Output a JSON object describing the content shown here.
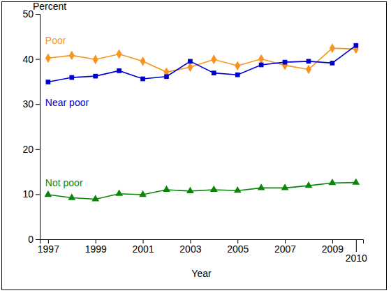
{
  "chart_data": {
    "type": "line",
    "y_label": "Percent",
    "x_label": "Year",
    "x": [
      1997,
      1998,
      1999,
      2000,
      2001,
      2002,
      2003,
      2004,
      2005,
      2006,
      2007,
      2008,
      2009,
      2010
    ],
    "series": [
      {
        "name": "Poor",
        "color": "#f7931e",
        "marker": "diamond",
        "values": [
          40.2,
          40.8,
          39.9,
          41.1,
          39.5,
          37.1,
          38.2,
          39.9,
          38.5,
          40.0,
          38.6,
          37.7,
          42.4,
          42.2
        ]
      },
      {
        "name": "Near poor",
        "color": "#0000cc",
        "marker": "square",
        "values": [
          34.9,
          35.9,
          36.2,
          37.4,
          35.6,
          36.1,
          39.5,
          36.9,
          36.5,
          38.7,
          39.3,
          39.5,
          39.1,
          43.0
        ]
      },
      {
        "name": "Not poor",
        "color": "#0a850a",
        "marker": "triangle",
        "values": [
          9.9,
          9.2,
          8.9,
          10.1,
          9.9,
          11.0,
          10.7,
          11.0,
          10.8,
          11.4,
          11.4,
          11.9,
          12.5,
          12.6
        ]
      }
    ],
    "xlim": [
      1996.65,
      2010.3
    ],
    "xticks": [
      1997,
      1999,
      2001,
      2003,
      2005,
      2007,
      2009,
      2010
    ],
    "ylim": [
      0,
      50
    ],
    "yticks": [
      0,
      10,
      20,
      30,
      40,
      50
    ],
    "grid": false
  }
}
